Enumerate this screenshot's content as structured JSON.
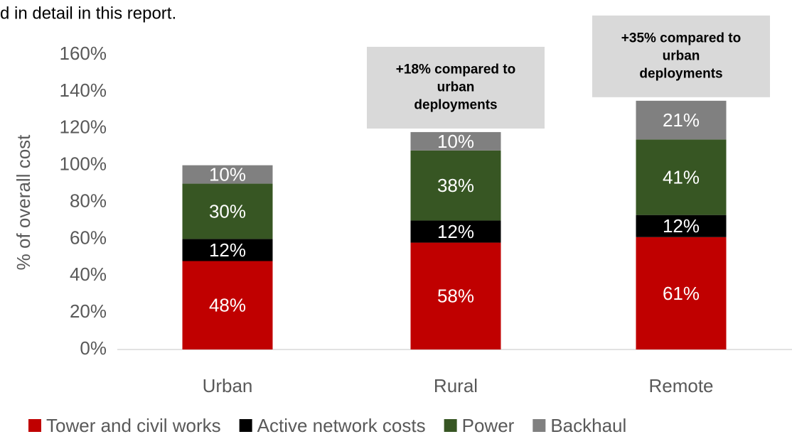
{
  "caption": "d in detail in this report.",
  "chart_data": {
    "type": "stacked_bar",
    "ylabel": "% of overall cost",
    "categories": [
      "Urban",
      "Rural",
      "Remote"
    ],
    "series": [
      {
        "name": "Tower and civil works",
        "color": "#c00000",
        "values": [
          48,
          58,
          61
        ],
        "value_labels": [
          "48%",
          "58%",
          "61%"
        ]
      },
      {
        "name": "Active network costs",
        "color": "#000000",
        "values": [
          12,
          12,
          12
        ],
        "value_labels": [
          "12%",
          "12%",
          "12%"
        ]
      },
      {
        "name": "Power",
        "color": "#375623",
        "values": [
          30,
          38,
          41
        ],
        "value_labels": [
          "30%",
          "38%",
          "41%"
        ]
      },
      {
        "name": "Backhaul",
        "color": "#808080",
        "values": [
          10,
          10,
          21
        ],
        "value_labels": [
          "10%",
          "10%",
          "21%"
        ]
      }
    ],
    "ylim": [
      0,
      160
    ],
    "yticks": [
      {
        "value": 0,
        "label": "0%"
      },
      {
        "value": 20,
        "label": "20%"
      },
      {
        "value": 40,
        "label": "40%"
      },
      {
        "value": 60,
        "label": "60%"
      },
      {
        "value": 80,
        "label": "80%"
      },
      {
        "value": 100,
        "label": "100%"
      },
      {
        "value": 120,
        "label": "120%"
      },
      {
        "value": 140,
        "label": "140%"
      },
      {
        "value": 160,
        "label": "160%"
      }
    ],
    "annotations": [
      {
        "category": "Rural",
        "lines": [
          "+18% compared to",
          "urban",
          "deployments"
        ]
      },
      {
        "category": "Remote",
        "lines": [
          "+35% compared to",
          "urban",
          "deployments"
        ]
      }
    ],
    "legend": "bottom"
  }
}
